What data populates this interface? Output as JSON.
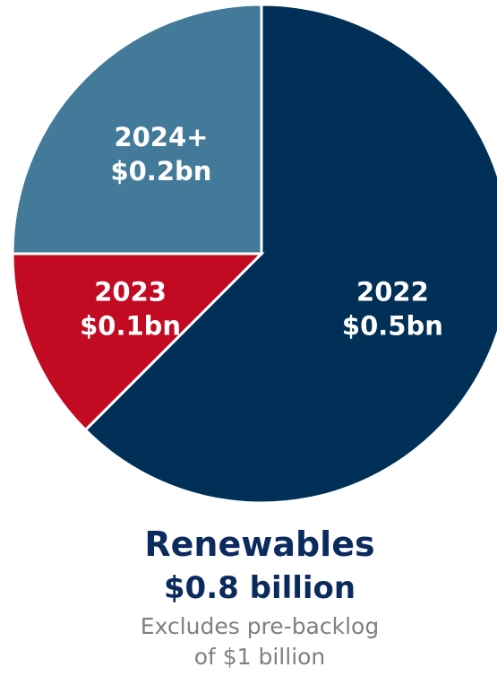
{
  "chart_data": {
    "type": "pie",
    "title": "",
    "slices": [
      {
        "category": "2022",
        "value": 0.5,
        "label": "$0.5bn",
        "color": "#003057"
      },
      {
        "category": "2023",
        "value": 0.1,
        "label": "$0.1bn",
        "color": "#c20a22"
      },
      {
        "category": "2024+",
        "value": 0.2,
        "label": "$0.2bn",
        "color": "#437a9a"
      }
    ],
    "unit": "bn"
  },
  "caption": {
    "title": "Renewables",
    "total": "$0.8 billion",
    "note_line1": "Excludes pre-backlog",
    "note_line2": "of $1 billion"
  }
}
